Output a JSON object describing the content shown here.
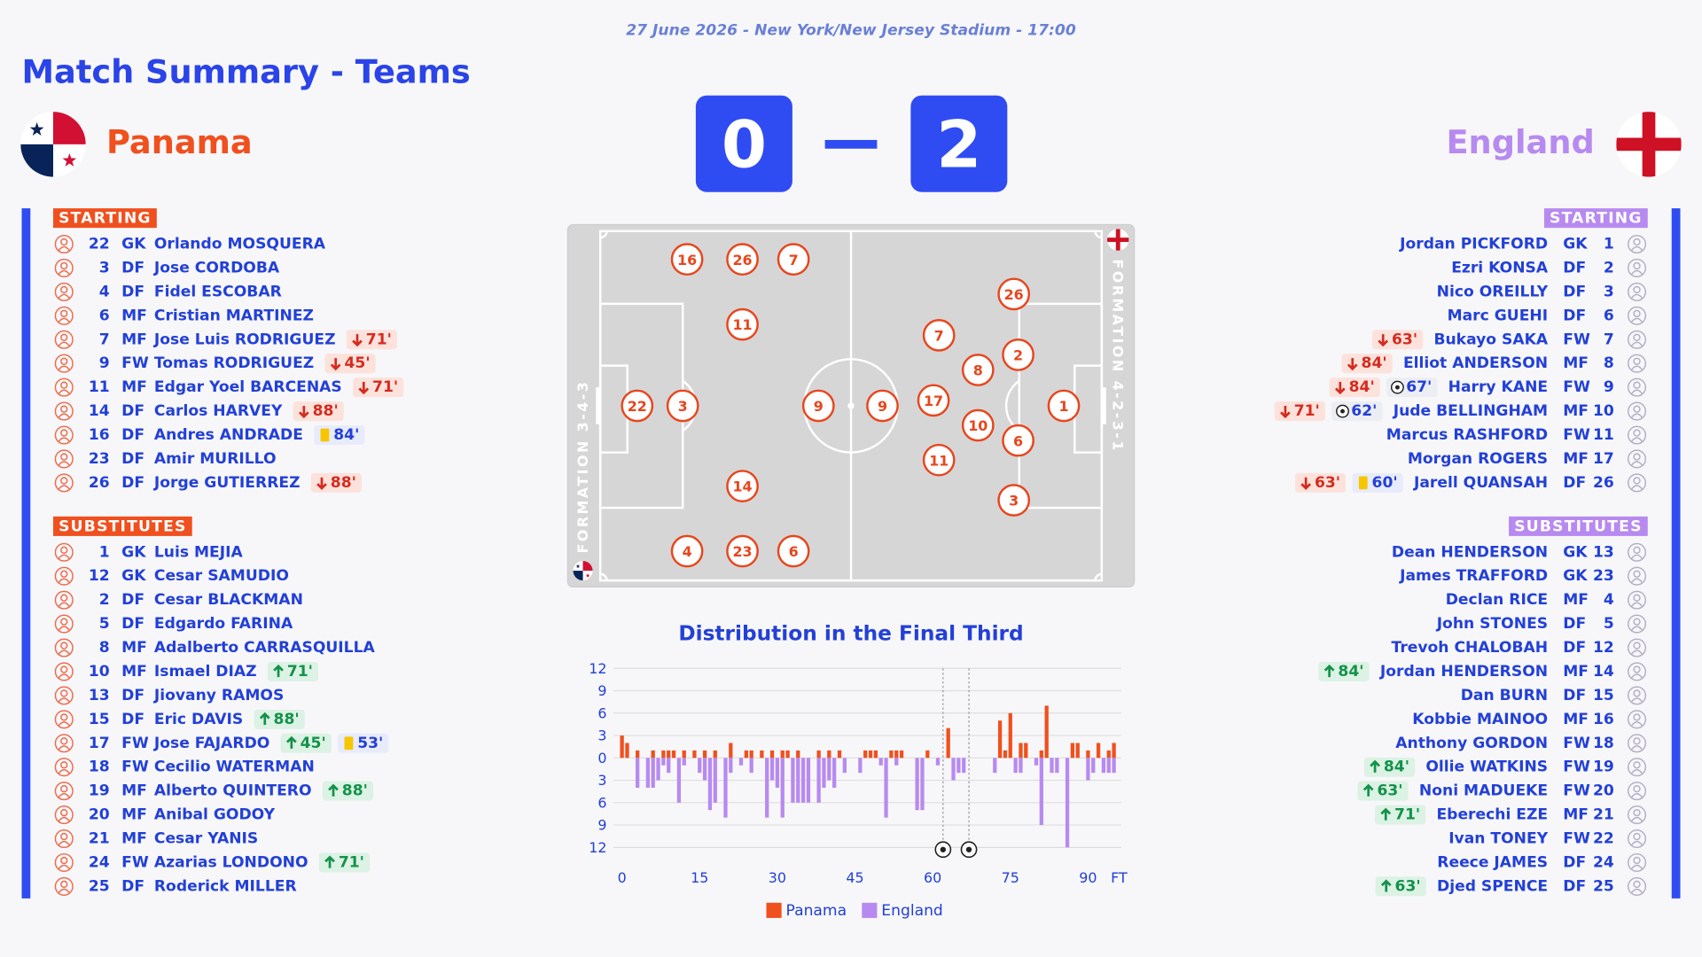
{
  "header": {
    "date_venue": "27 June 2026 - New York/New Jersey Stadium - 17:00",
    "title": "Match Summary - Teams"
  },
  "home": {
    "name": "Panama",
    "score": 0,
    "starting_label": "STARTING",
    "subs_label": "SUBSTITUTES",
    "starting": [
      {
        "number": 22,
        "position": "GK",
        "name": "Orlando MOSQUERA"
      },
      {
        "number": 3,
        "position": "DF",
        "name": "Jose CORDOBA"
      },
      {
        "number": 4,
        "position": "DF",
        "name": "Fidel ESCOBAR"
      },
      {
        "number": 6,
        "position": "MF",
        "name": "Cristian MARTINEZ"
      },
      {
        "number": 7,
        "position": "MF",
        "name": "Jose Luis RODRIGUEZ",
        "events": [
          {
            "type": "off",
            "minute": "71'"
          }
        ]
      },
      {
        "number": 9,
        "position": "FW",
        "name": "Tomas RODRIGUEZ",
        "events": [
          {
            "type": "off",
            "minute": "45'"
          }
        ]
      },
      {
        "number": 11,
        "position": "MF",
        "name": "Edgar Yoel BARCENAS",
        "events": [
          {
            "type": "off",
            "minute": "71'"
          }
        ]
      },
      {
        "number": 14,
        "position": "DF",
        "name": "Carlos HARVEY",
        "events": [
          {
            "type": "off",
            "minute": "88'"
          }
        ]
      },
      {
        "number": 16,
        "position": "DF",
        "name": "Andres ANDRADE",
        "events": [
          {
            "type": "yellow",
            "minute": "84'"
          }
        ]
      },
      {
        "number": 23,
        "position": "DF",
        "name": "Amir MURILLO"
      },
      {
        "number": 26,
        "position": "DF",
        "name": "Jorge GUTIERREZ",
        "events": [
          {
            "type": "off",
            "minute": "88'"
          }
        ]
      }
    ],
    "substitutes": [
      {
        "number": 1,
        "position": "GK",
        "name": "Luis MEJIA"
      },
      {
        "number": 12,
        "position": "GK",
        "name": "Cesar SAMUDIO"
      },
      {
        "number": 2,
        "position": "DF",
        "name": "Cesar BLACKMAN"
      },
      {
        "number": 5,
        "position": "DF",
        "name": "Edgardo FARINA"
      },
      {
        "number": 8,
        "position": "MF",
        "name": "Adalberto CARRASQUILLA"
      },
      {
        "number": 10,
        "position": "MF",
        "name": "Ismael DIAZ",
        "events": [
          {
            "type": "on",
            "minute": "71'"
          }
        ]
      },
      {
        "number": 13,
        "position": "DF",
        "name": "Jiovany RAMOS"
      },
      {
        "number": 15,
        "position": "DF",
        "name": "Eric DAVIS",
        "events": [
          {
            "type": "on",
            "minute": "88'"
          }
        ]
      },
      {
        "number": 17,
        "position": "FW",
        "name": "Jose FAJARDO",
        "events": [
          {
            "type": "on",
            "minute": "45'"
          },
          {
            "type": "yellow",
            "minute": "53'"
          }
        ]
      },
      {
        "number": 18,
        "position": "FW",
        "name": "Cecilio WATERMAN"
      },
      {
        "number": 19,
        "position": "MF",
        "name": "Alberto QUINTERO",
        "events": [
          {
            "type": "on",
            "minute": "88'"
          }
        ]
      },
      {
        "number": 20,
        "position": "MF",
        "name": "Anibal GODOY"
      },
      {
        "number": 21,
        "position": "MF",
        "name": "Cesar YANIS"
      },
      {
        "number": 24,
        "position": "FW",
        "name": "Azarias LONDONO",
        "events": [
          {
            "type": "on",
            "minute": "71'"
          }
        ]
      },
      {
        "number": 25,
        "position": "DF",
        "name": "Roderick MILLER"
      }
    ]
  },
  "away": {
    "name": "England",
    "score": 2,
    "starting_label": "STARTING",
    "subs_label": "SUBSTITUTES",
    "starting": [
      {
        "number": 1,
        "position": "GK",
        "name": "Jordan PICKFORD"
      },
      {
        "number": 2,
        "position": "DF",
        "name": "Ezri KONSA"
      },
      {
        "number": 3,
        "position": "DF",
        "name": "Nico OREILLY"
      },
      {
        "number": 6,
        "position": "DF",
        "name": "Marc GUEHI"
      },
      {
        "number": 7,
        "position": "FW",
        "name": "Bukayo SAKA",
        "events": [
          {
            "type": "off",
            "minute": "63'"
          }
        ]
      },
      {
        "number": 8,
        "position": "MF",
        "name": "Elliot ANDERSON",
        "events": [
          {
            "type": "off",
            "minute": "84'"
          }
        ]
      },
      {
        "number": 9,
        "position": "FW",
        "name": "Harry KANE",
        "events": [
          {
            "type": "off",
            "minute": "84'"
          },
          {
            "type": "goal",
            "minute": "67'"
          }
        ]
      },
      {
        "number": 10,
        "position": "MF",
        "name": "Jude BELLINGHAM",
        "events": [
          {
            "type": "off",
            "minute": "71'"
          },
          {
            "type": "goal",
            "minute": "62'"
          }
        ]
      },
      {
        "number": 11,
        "position": "FW",
        "name": "Marcus RASHFORD"
      },
      {
        "number": 17,
        "position": "MF",
        "name": "Morgan ROGERS"
      },
      {
        "number": 26,
        "position": "DF",
        "name": "Jarell QUANSAH",
        "events": [
          {
            "type": "off",
            "minute": "63'"
          },
          {
            "type": "yellow",
            "minute": "60'"
          }
        ]
      }
    ],
    "substitutes": [
      {
        "number": 13,
        "position": "GK",
        "name": "Dean HENDERSON"
      },
      {
        "number": 23,
        "position": "GK",
        "name": "James TRAFFORD"
      },
      {
        "number": 4,
        "position": "MF",
        "name": "Declan RICE"
      },
      {
        "number": 5,
        "position": "DF",
        "name": "John STONES"
      },
      {
        "number": 12,
        "position": "DF",
        "name": "Trevoh CHALOBAH"
      },
      {
        "number": 14,
        "position": "MF",
        "name": "Jordan HENDERSON",
        "events": [
          {
            "type": "on",
            "minute": "84'"
          }
        ]
      },
      {
        "number": 15,
        "position": "DF",
        "name": "Dan BURN"
      },
      {
        "number": 16,
        "position": "MF",
        "name": "Kobbie MAINOO"
      },
      {
        "number": 18,
        "position": "FW",
        "name": "Anthony GORDON"
      },
      {
        "number": 19,
        "position": "FW",
        "name": "Ollie WATKINS",
        "events": [
          {
            "type": "on",
            "minute": "84'"
          }
        ]
      },
      {
        "number": 20,
        "position": "FW",
        "name": "Noni MADUEKE",
        "events": [
          {
            "type": "on",
            "minute": "63'"
          }
        ]
      },
      {
        "number": 21,
        "position": "MF",
        "name": "Eberechi EZE",
        "events": [
          {
            "type": "on",
            "minute": "71'"
          }
        ]
      },
      {
        "number": 22,
        "position": "FW",
        "name": "Ivan TONEY"
      },
      {
        "number": 24,
        "position": "DF",
        "name": "Reece JAMES"
      },
      {
        "number": 25,
        "position": "DF",
        "name": "Djed SPENCE",
        "events": [
          {
            "type": "on",
            "minute": "63'"
          }
        ]
      }
    ]
  },
  "pitch": {
    "home": {
      "formation": "FORMATION 3-4-3",
      "players": [
        22,
        3,
        16,
        26,
        7,
        11,
        9,
        14,
        4,
        23,
        6
      ]
    },
    "away": {
      "formation": "FORMATION 4-2-3-1",
      "players": [
        1,
        26,
        2,
        8,
        6,
        3,
        7,
        17,
        10,
        11,
        9
      ]
    }
  },
  "chart_data": {
    "type": "bar",
    "title": "Distribution in the Final Third",
    "series": [
      {
        "name": "Panama",
        "color": "#f0501e",
        "x": [
          0,
          1,
          3,
          6,
          8,
          9,
          10,
          12,
          14,
          16,
          18,
          21,
          24,
          25,
          27,
          29,
          31,
          32,
          34,
          38,
          40,
          42,
          47,
          48,
          49,
          52,
          53,
          54,
          59,
          63,
          73,
          74,
          75,
          77,
          78,
          81,
          82,
          87,
          88,
          90,
          92,
          94,
          95
        ],
        "values": [
          3,
          2,
          1,
          1,
          1,
          1,
          1,
          1,
          1,
          1,
          1,
          2,
          1,
          1,
          1,
          1,
          1,
          1,
          1,
          1,
          1,
          1,
          1,
          1,
          1,
          1,
          1,
          1,
          1,
          4,
          5,
          1,
          6,
          2,
          2,
          1,
          7,
          2,
          2,
          1,
          2,
          1,
          2
        ]
      },
      {
        "name": "England",
        "color": "#b78af0",
        "x": [
          3,
          5,
          6,
          7,
          8,
          9,
          11,
          12,
          15,
          16,
          17,
          18,
          20,
          21,
          23,
          25,
          28,
          29,
          30,
          31,
          33,
          34,
          35,
          36,
          38,
          39,
          40,
          41,
          43,
          46,
          50,
          51,
          53,
          57,
          58,
          61,
          64,
          65,
          66,
          72,
          76,
          77,
          80,
          81,
          83,
          84,
          86,
          90,
          91,
          93,
          94,
          95
        ],
        "values": [
          -4,
          -4,
          -4,
          -3,
          -1,
          -2,
          -6,
          -1,
          -2,
          -3,
          -7,
          -6,
          -8,
          -2,
          -1,
          -2,
          -8,
          -3,
          -4,
          -8,
          -6,
          -6,
          -6,
          -6,
          -6,
          -4,
          -3,
          -4,
          -2,
          -2,
          -1,
          -8,
          -1,
          -7,
          -7,
          -1,
          -3,
          -2,
          -2,
          -2,
          -2,
          -2,
          -1,
          -9,
          -2,
          -2,
          -12,
          -3,
          -2,
          -2,
          -2,
          -2
        ]
      }
    ],
    "xlim": [
      0,
      96
    ],
    "xticks": [
      0,
      15,
      30,
      45,
      60,
      75,
      90,
      {
        "value": 96,
        "label": "FT"
      }
    ],
    "ylim": [
      -12,
      12
    ],
    "yticks": [
      12,
      9,
      6,
      3,
      0,
      {
        "value": -3,
        "label": "3"
      },
      {
        "value": -6,
        "label": "6"
      },
      {
        "value": -9,
        "label": "9"
      },
      {
        "value": -12,
        "label": "12"
      }
    ],
    "grid": true,
    "goals": [
      62,
      67
    ]
  }
}
